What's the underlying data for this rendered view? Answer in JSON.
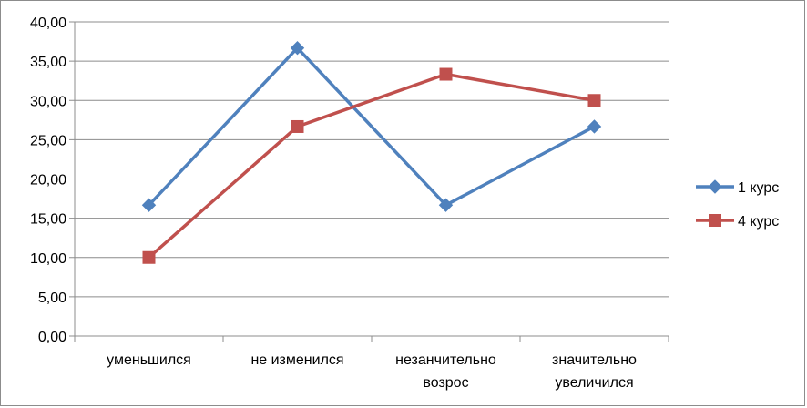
{
  "chart_data": {
    "type": "line",
    "categories": [
      [
        "уменьшился"
      ],
      [
        "не изменился"
      ],
      [
        "незанчительно",
        "возрос"
      ],
      [
        "значительно",
        "увеличился"
      ]
    ],
    "y_ticks": [
      "0,00",
      "5,00",
      "10,00",
      "15,00",
      "20,00",
      "25,00",
      "30,00",
      "35,00",
      "40,00"
    ],
    "ylim": [
      0,
      40
    ],
    "grid": true,
    "legend_position": "right",
    "series": [
      {
        "name": "1 курс",
        "values": [
          16.67,
          36.67,
          16.67,
          26.67
        ],
        "color": "#4f81bd",
        "marker": "diamond"
      },
      {
        "name": "4 курс",
        "values": [
          10.0,
          26.67,
          33.33,
          30.0
        ],
        "color": "#c0504d",
        "marker": "square"
      }
    ]
  }
}
